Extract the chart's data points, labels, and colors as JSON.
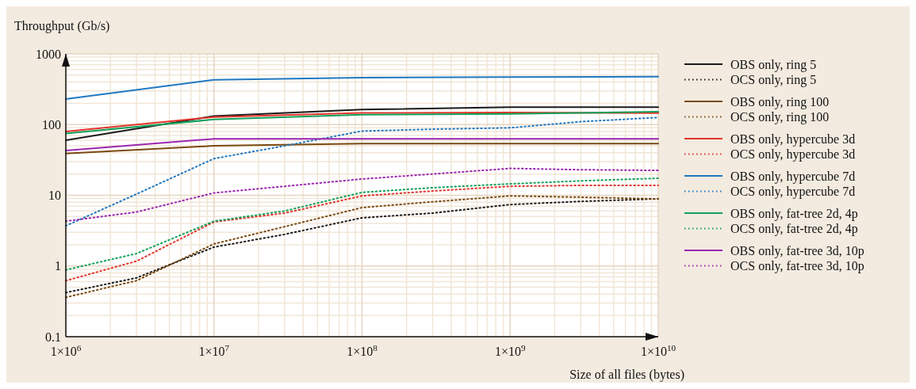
{
  "chart_data": {
    "type": "line",
    "xlabel": "Size of all files (bytes)",
    "ylabel": "Throughput (Gb/s)",
    "log": "xy",
    "grid": true,
    "legend": "right",
    "xlim": [
      1000000,
      10000000000
    ],
    "ylim": [
      0.1,
      1000
    ],
    "xticks": [
      {
        "value": 1000000,
        "label": "1×10$^{6}$"
      },
      {
        "value": 10000000,
        "label": "1×10$^{7}$"
      },
      {
        "value": 100000000,
        "label": "1×10$^{8}$"
      },
      {
        "value": 1000000000,
        "label": "1×10$^{9}$"
      },
      {
        "value": 10000000000,
        "label": "1×10$^{10}$"
      }
    ],
    "yticks": [
      0.1,
      1,
      10,
      100,
      1000
    ],
    "series": [
      {
        "name": "OBS only, ring 5",
        "color": "#1a1a1a",
        "line_style": "solid",
        "x": [
          1000000,
          10000000,
          100000000,
          1000000000,
          10000000000
        ],
        "values": [
          60,
          132,
          163,
          176,
          176
        ]
      },
      {
        "name": "OCS only, ring 5",
        "color": "#1a1a1a",
        "line_style": "dotted",
        "x": [
          1000000,
          3000000,
          10000000,
          30000000,
          100000000,
          300000000,
          1000000000,
          3000000000,
          10000000000
        ],
        "values": [
          0.42,
          0.68,
          1.85,
          2.8,
          4.8,
          5.6,
          7.4,
          8.2,
          8.9
        ]
      },
      {
        "name": "OBS only, ring 100",
        "color": "#7a4a10",
        "line_style": "solid",
        "x": [
          1000000,
          10000000,
          100000000,
          1000000000,
          10000000000
        ],
        "values": [
          39,
          50,
          54,
          54,
          54
        ]
      },
      {
        "name": "OCS only, ring 100",
        "color": "#7a4a10",
        "line_style": "dotted",
        "x": [
          1000000,
          3000000,
          10000000,
          30000000,
          100000000,
          300000000,
          1000000000,
          3000000000,
          10000000000
        ],
        "values": [
          0.36,
          0.62,
          2.05,
          3.6,
          6.7,
          8.1,
          9.8,
          9.4,
          8.9
        ]
      },
      {
        "name": "OBS only, hypercube 3d",
        "color": "#e3342a",
        "line_style": "solid",
        "x": [
          1000000,
          10000000,
          100000000,
          1000000000,
          10000000000
        ],
        "values": [
          80,
          128,
          146,
          148,
          145
        ]
      },
      {
        "name": "OCS only, hypercube 3d",
        "color": "#e3342a",
        "line_style": "dotted",
        "x": [
          1000000,
          3000000,
          10000000,
          30000000,
          100000000,
          300000000,
          1000000000,
          3000000000,
          10000000000
        ],
        "values": [
          0.62,
          1.17,
          4.2,
          5.6,
          9.8,
          11.5,
          13.4,
          13.8,
          13.8
        ]
      },
      {
        "name": "OBS only, hypercube 7d",
        "color": "#1f78c1",
        "line_style": "solid",
        "x": [
          1000000,
          10000000,
          100000000,
          1000000000,
          10000000000
        ],
        "values": [
          230,
          430,
          460,
          470,
          475
        ]
      },
      {
        "name": "OCS only, hypercube 7d",
        "color": "#1f78c1",
        "line_style": "dotted",
        "x": [
          1000000,
          3000000,
          10000000,
          30000000,
          100000000,
          300000000,
          1000000000,
          3000000000,
          10000000000
        ],
        "values": [
          3.7,
          10.4,
          33,
          50,
          81,
          86,
          90,
          110,
          126
        ]
      },
      {
        "name": "OBS only, fat-tree 2d, 4p",
        "color": "#12a05a",
        "line_style": "solid",
        "x": [
          1000000,
          10000000,
          100000000,
          1000000000,
          10000000000
        ],
        "values": [
          75,
          118,
          138,
          142,
          152
        ]
      },
      {
        "name": "OCS only, fat-tree 2d, 4p",
        "color": "#12a05a",
        "line_style": "dotted",
        "x": [
          1000000,
          3000000,
          10000000,
          30000000,
          100000000,
          300000000,
          1000000000,
          3000000000,
          10000000000
        ],
        "values": [
          0.88,
          1.5,
          4.3,
          6.0,
          11,
          12.8,
          14.5,
          16,
          17.4
        ]
      },
      {
        "name": "OBS only, fat-tree 3d, 10p",
        "color": "#9b27b0",
        "line_style": "solid",
        "x": [
          1000000,
          10000000,
          100000000,
          1000000000,
          10000000000
        ],
        "values": [
          43,
          63,
          63,
          63,
          63
        ]
      },
      {
        "name": "OCS only, fat-tree 3d, 10p",
        "color": "#9b27b0",
        "line_style": "dotted",
        "x": [
          1000000,
          3000000,
          10000000,
          30000000,
          100000000,
          300000000,
          1000000000,
          3000000000,
          10000000000
        ],
        "values": [
          4.3,
          5.8,
          10.8,
          13.4,
          17,
          20,
          24,
          23,
          22.5
        ]
      }
    ]
  }
}
